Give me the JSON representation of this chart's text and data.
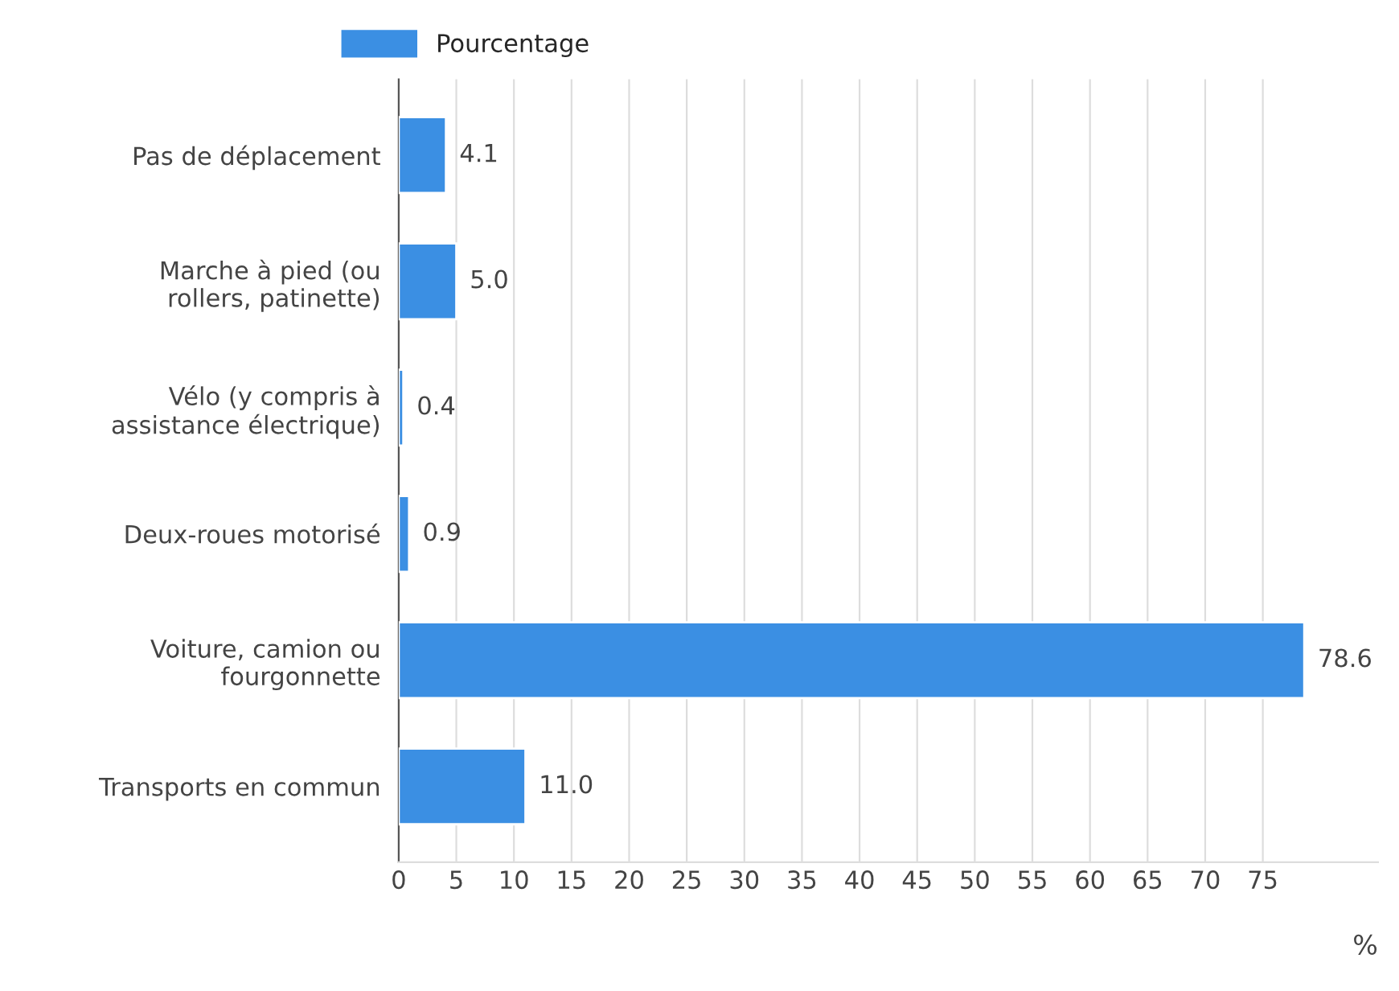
{
  "chart_data": {
    "type": "bar",
    "orientation": "horizontal",
    "xlabel": "%",
    "categories": [
      "Pas de déplacement",
      "Marche à pied (ou\nrollers, patinette)",
      "Vélo (y compris à\nassistance électrique)",
      "Deux-roues motorisé",
      "Voiture, camion ou\nfourgonnette",
      "Transports en commun"
    ],
    "series": [
      {
        "name": "Pourcentage",
        "color": "#3b8fe3",
        "values": [
          4.1,
          5.0,
          0.4,
          0.9,
          78.6,
          11.0
        ],
        "value_labels": [
          "4.1",
          "5.0",
          "0.4",
          "0.9",
          "78.6",
          "11.0"
        ]
      }
    ],
    "xlim": [
      0,
      85
    ],
    "xticks": [
      0,
      5,
      10,
      15,
      20,
      25,
      30,
      35,
      40,
      45,
      50,
      55,
      60,
      65,
      70,
      75
    ],
    "grid": "x",
    "legend": "top left"
  }
}
